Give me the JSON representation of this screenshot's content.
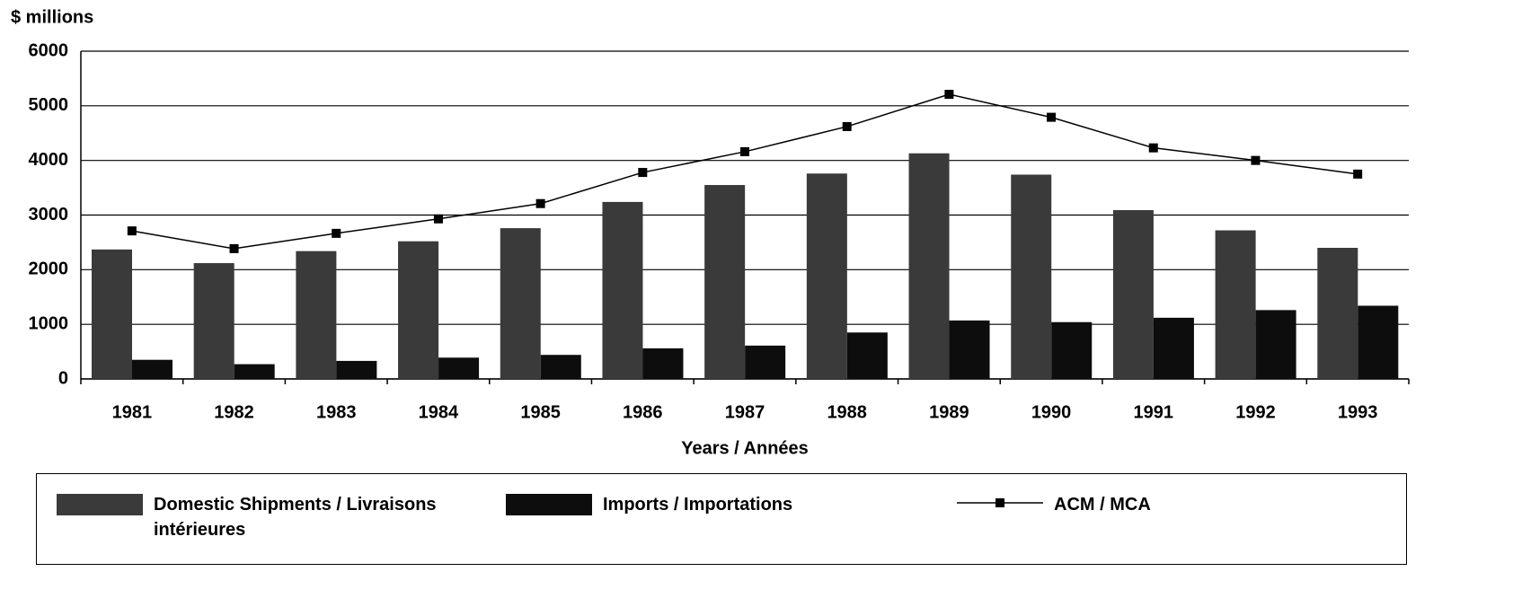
{
  "chart_data": {
    "type": "bar",
    "y_axis_label": "$ millions",
    "x_axis_label": "Years / Années",
    "categories": [
      "1981",
      "1982",
      "1983",
      "1984",
      "1985",
      "1986",
      "1987",
      "1988",
      "1989",
      "1990",
      "1991",
      "1992",
      "1993"
    ],
    "series": [
      {
        "name": "Domestic Shipments / Livraisons intérieures",
        "type": "bar",
        "color": "#3a3a3a",
        "values": [
          2370,
          2120,
          2340,
          2520,
          2760,
          3240,
          3550,
          3760,
          4130,
          3740,
          3090,
          2720,
          2400
        ]
      },
      {
        "name": "Imports / Importations",
        "type": "bar",
        "color": "#0d0d0d",
        "values": [
          350,
          270,
          330,
          390,
          440,
          560,
          610,
          850,
          1070,
          1040,
          1120,
          1260,
          1340
        ]
      },
      {
        "name": "ACM / MCA",
        "type": "line",
        "color": "#000000",
        "values": [
          2710,
          2385,
          2665,
          2930,
          3210,
          3780,
          4160,
          4620,
          5210,
          4790,
          4230,
          4000,
          3750
        ]
      }
    ],
    "ylim": [
      0,
      6000
    ],
    "yticks": [
      0,
      1000,
      2000,
      3000,
      4000,
      5000,
      6000
    ],
    "grid": true
  }
}
